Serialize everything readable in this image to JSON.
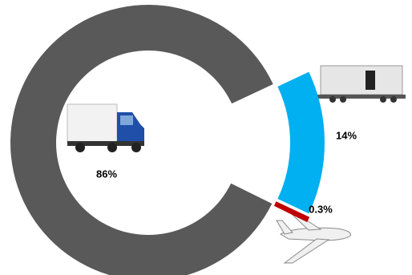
{
  "chart_data": {
    "type": "donut",
    "values": [
      86,
      14,
      0.3
    ],
    "value_labels": [
      "86%",
      "14%",
      "0.3%"
    ],
    "colors": [
      "#595959",
      "#00b0f0",
      "#c00000"
    ]
  }
}
